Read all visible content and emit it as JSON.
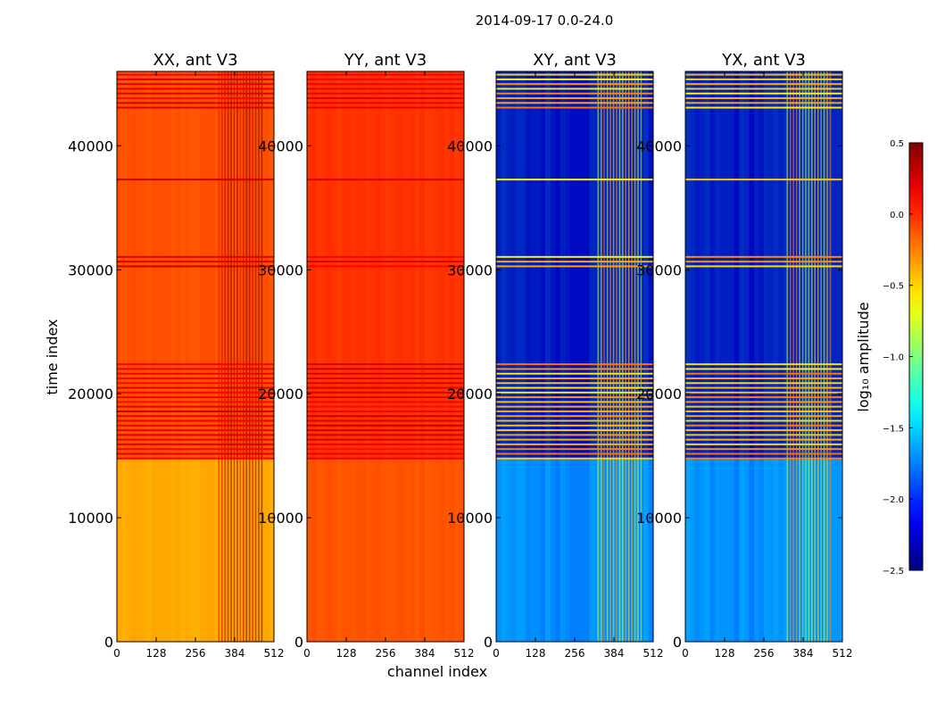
{
  "figure_title": "2014-09-17 0.0-24.0",
  "chart_data": {
    "type": "heatmap",
    "title": "2014-09-17 0.0-24.0",
    "xlabel": "channel index",
    "ylabel": "time index",
    "xlim": [
      0,
      512
    ],
    "ylim": [
      0,
      46000
    ],
    "x_ticks": [
      0,
      128,
      256,
      384,
      512
    ],
    "y_ticks": [
      0,
      10000,
      20000,
      30000,
      40000
    ],
    "panels": [
      {
        "name": "XX",
        "title": "XX, ant V3",
        "level_low": -0.45,
        "level_high": -0.05,
        "rfi_channels": [
          330,
          480
        ]
      },
      {
        "name": "YY",
        "title": "YY, ant V3",
        "level_low": -0.15,
        "level_high": 0.0,
        "rfi_channels": []
      },
      {
        "name": "XY",
        "title": "XY, ant V3",
        "level_low": -1.6,
        "level_high": -2.4,
        "rfi_channels": [
          330,
          480
        ]
      },
      {
        "name": "YX",
        "title": "YX, ant V3",
        "level_low": -1.6,
        "level_high": -2.4,
        "rfi_channels": [
          330,
          480
        ]
      }
    ],
    "colorbar": {
      "label": "log₁₀ amplitude",
      "colormap": "jet",
      "vmin": -2.5,
      "vmax": 0.5,
      "ticks": [
        0.5,
        0.0,
        -0.5,
        -1.0,
        -1.5,
        -2.0,
        -2.5
      ],
      "tick_labels": [
        "0.5",
        "0.0",
        "−0.5",
        "−1.0",
        "−1.5",
        "−2.0",
        "−2.5"
      ]
    },
    "flagged_time_ranges": [
      [
        14700,
        22500
      ],
      [
        30200,
        31200
      ],
      [
        37200,
        37500
      ],
      [
        43000,
        46000
      ]
    ]
  }
}
